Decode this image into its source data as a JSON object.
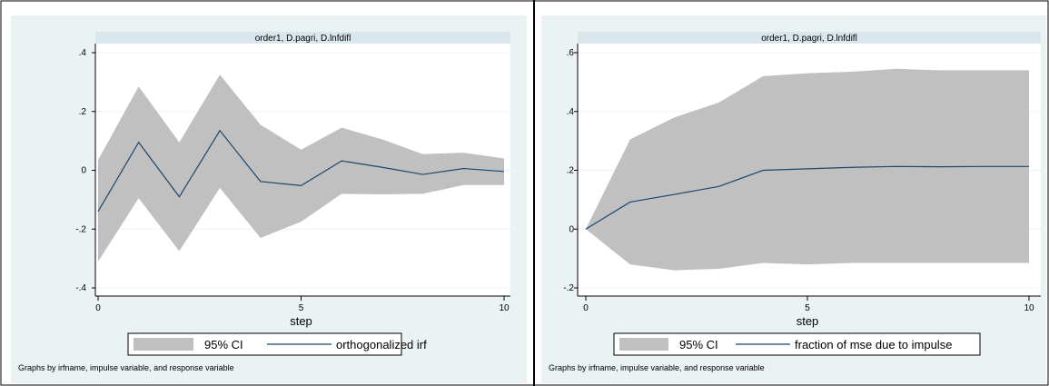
{
  "chart_data": [
    {
      "type": "area",
      "title": "order1, D.pagri, D.lnfdifl",
      "xlabel": "step",
      "ylabel": "",
      "xlim": [
        0,
        10
      ],
      "ylim": [
        -0.4,
        0.4
      ],
      "xticks": [
        0,
        5,
        10
      ],
      "xtick_labels": [
        "0",
        "5",
        "10"
      ],
      "yticks": [
        -0.4,
        -0.2,
        0,
        0.2,
        0.4
      ],
      "ytick_labels": [
        "-.4",
        "-.2",
        "0",
        ".2",
        ".4"
      ],
      "grid": true,
      "legend_position": "bottom",
      "x": [
        0,
        1,
        2,
        3,
        4,
        5,
        6,
        7,
        8,
        9,
        10
      ],
      "series": [
        {
          "name": "95% CI",
          "kind": "band",
          "color": "#c0c0c0",
          "lower": [
            -0.31,
            -0.095,
            -0.275,
            -0.06,
            -0.23,
            -0.175,
            -0.08,
            -0.082,
            -0.08,
            -0.05,
            -0.05
          ],
          "upper": [
            0.035,
            0.285,
            0.095,
            0.325,
            0.155,
            0.07,
            0.145,
            0.105,
            0.055,
            0.06,
            0.04
          ]
        },
        {
          "name": "orthogonalized irf",
          "kind": "line",
          "color": "#1a476f",
          "values": [
            -0.14,
            0.095,
            -0.09,
            0.135,
            -0.038,
            -0.052,
            0.032,
            0.01,
            -0.014,
            0.006,
            -0.004
          ]
        }
      ],
      "note": "Graphs by irfname, impulse variable, and response variable"
    },
    {
      "type": "area",
      "title": "order1, D.pagri, D.lnfdifl",
      "xlabel": "step",
      "ylabel": "",
      "xlim": [
        0,
        10
      ],
      "ylim": [
        -0.2,
        0.6
      ],
      "xticks": [
        0,
        5,
        10
      ],
      "xtick_labels": [
        "0",
        "5",
        "10"
      ],
      "yticks": [
        -0.2,
        0,
        0.2,
        0.4,
        0.6
      ],
      "ytick_labels": [
        "-.2",
        "0",
        ".2",
        ".4",
        ".6"
      ],
      "grid": true,
      "legend_position": "bottom",
      "x": [
        0,
        1,
        2,
        3,
        4,
        5,
        6,
        7,
        8,
        9,
        10
      ],
      "series": [
        {
          "name": "95% CI",
          "kind": "band",
          "color": "#c0c0c0",
          "lower": [
            0,
            -0.12,
            -0.14,
            -0.135,
            -0.115,
            -0.12,
            -0.115,
            -0.115,
            -0.115,
            -0.115,
            -0.115
          ],
          "upper": [
            0,
            0.305,
            0.38,
            0.43,
            0.52,
            0.53,
            0.535,
            0.545,
            0.54,
            0.54,
            0.54
          ]
        },
        {
          "name": "fraction of mse due to impulse",
          "kind": "line",
          "color": "#1a476f",
          "values": [
            0,
            0.092,
            0.118,
            0.145,
            0.2,
            0.205,
            0.21,
            0.213,
            0.212,
            0.213,
            0.213
          ]
        }
      ],
      "note": "Graphs by irfname, impulse variable, and response variable"
    }
  ]
}
